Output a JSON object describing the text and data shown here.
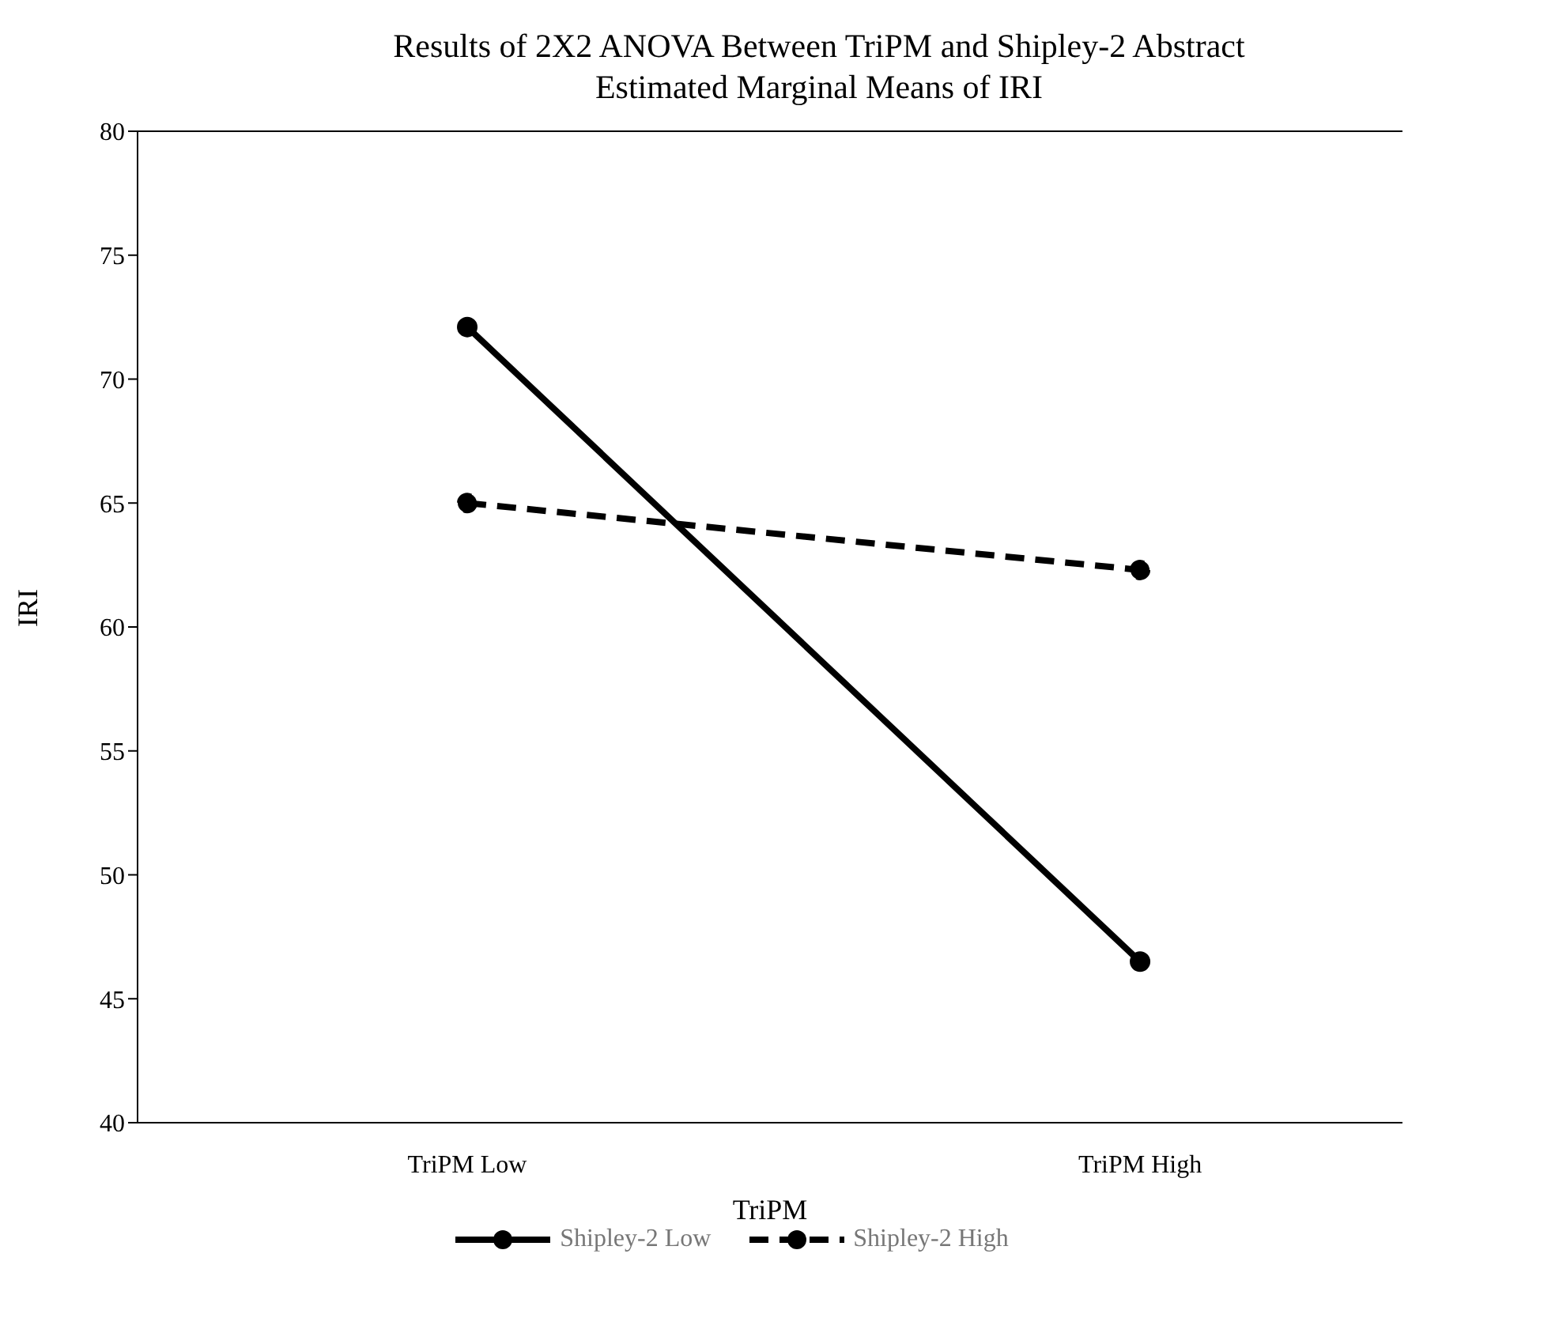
{
  "chart_data": {
    "type": "line",
    "title": "Results of 2X2 ANOVA Between TriPM and Shipley-2 Abstract",
    "subtitle": "Estimated Marginal Means of IRI",
    "xlabel": "TriPM",
    "ylabel": "IRI",
    "categories": [
      "TriPM Low",
      "TriPM High"
    ],
    "series": [
      {
        "name": "Shipley-2 Low",
        "color": "#000000",
        "values": [
          72.1,
          46.5
        ],
        "line_style": "solid"
      },
      {
        "name": "Shipley-2 High",
        "color": "#000000",
        "values": [
          65.0,
          62.3
        ],
        "line_style": "dashed"
      }
    ],
    "ylim": [
      40,
      80
    ],
    "yticks": [
      40,
      45,
      50,
      55,
      60,
      65,
      70,
      75,
      80
    ],
    "grid": false,
    "legend": "bottom",
    "marker": "circle"
  }
}
